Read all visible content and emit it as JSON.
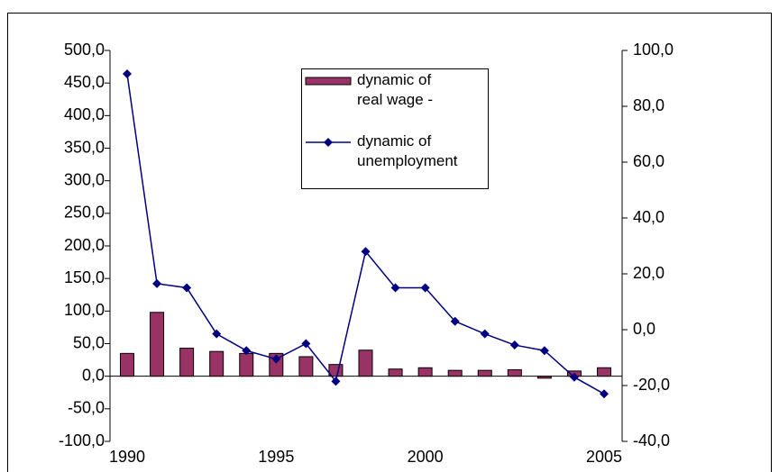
{
  "chart_data": {
    "type": "bar-line",
    "categories": [
      "1990",
      null,
      null,
      null,
      null,
      "1995",
      null,
      null,
      null,
      null,
      "2000",
      null,
      null,
      null,
      null,
      null,
      "2005"
    ],
    "series": [
      {
        "name": "dynamic of real wage -",
        "type": "bar",
        "color": "#993366",
        "axis": "y",
        "values": [
          35,
          98,
          43,
          38,
          35,
          35,
          30,
          18,
          40,
          11,
          13,
          9,
          9,
          10,
          -3,
          8,
          13
        ]
      },
      {
        "name": "dynamic of unemployment",
        "type": "line",
        "color": "#000080",
        "axis": "y2",
        "values": [
          91.6,
          16.5,
          15,
          -1.5,
          -7.5,
          -10.5,
          -5,
          -18.5,
          28,
          15,
          15,
          3,
          -1.5,
          -5.5,
          -7.5,
          -17,
          -23
        ]
      }
    ],
    "ylim": [
      -100,
      500
    ],
    "yticks": [
      {
        "value": -100,
        "label": "-100,0"
      },
      {
        "value": -50,
        "label": "-50,0"
      },
      {
        "value": 0,
        "label": "0,0"
      },
      {
        "value": 50,
        "label": "50,0"
      },
      {
        "value": 100,
        "label": "100,0"
      },
      {
        "value": 150,
        "label": "150,0"
      },
      {
        "value": 200,
        "label": "200,0"
      },
      {
        "value": 250,
        "label": "250,0"
      },
      {
        "value": 300,
        "label": "300,0"
      },
      {
        "value": 350,
        "label": "350,0"
      },
      {
        "value": 400,
        "label": "400,0"
      },
      {
        "value": 450,
        "label": "450,0"
      },
      {
        "value": 500,
        "label": "500,0"
      }
    ],
    "y2lim": [
      -40,
      100
    ],
    "y2ticks": [
      {
        "value": -40,
        "label": "-40,0"
      },
      {
        "value": -20,
        "label": "-20,0"
      },
      {
        "value": 0,
        "label": "0,0"
      },
      {
        "value": 20,
        "label": "20,0"
      },
      {
        "value": 40,
        "label": "40,0"
      },
      {
        "value": 60,
        "label": "60,0"
      },
      {
        "value": 80,
        "label": "80,0"
      },
      {
        "value": 100,
        "label": "100,0"
      }
    ],
    "legend": "top-center"
  }
}
